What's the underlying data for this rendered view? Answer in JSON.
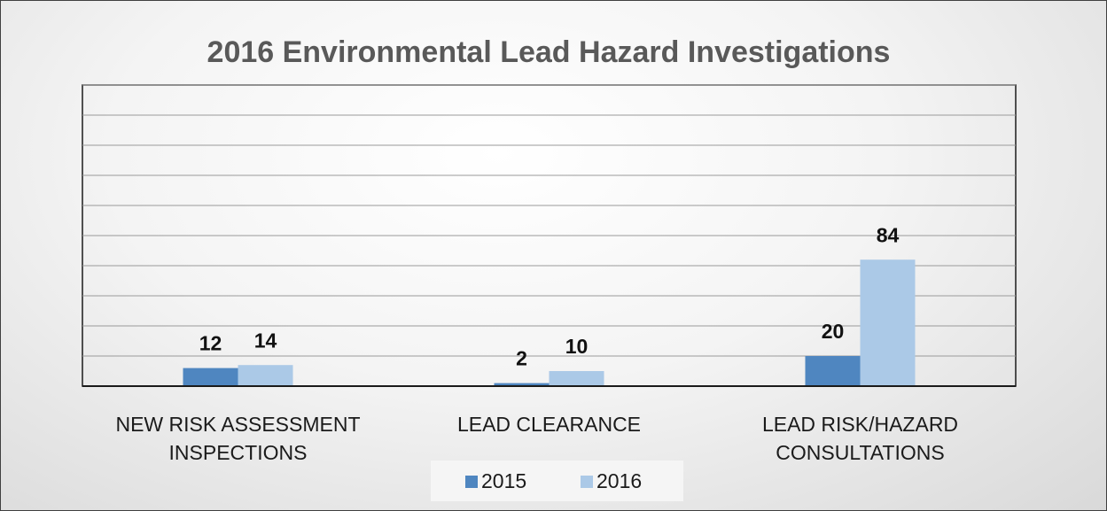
{
  "chart_data": {
    "type": "bar",
    "title": "2016 Environmental Lead Hazard Investigations",
    "categories": [
      "NEW RISK ASSESSMENT INSPECTIONS",
      "LEAD CLEARANCE",
      "LEAD RISK/HAZARD CONSULTATIONS"
    ],
    "series": [
      {
        "name": "2015",
        "color": "#4f86c0",
        "values": [
          12,
          2,
          20
        ]
      },
      {
        "name": "2016",
        "color": "#abc9e7",
        "values": [
          14,
          10,
          84
        ]
      }
    ],
    "ylim": [
      0,
      200
    ],
    "yticks": [
      0,
      20,
      40,
      60,
      80,
      100,
      120,
      140,
      160,
      180,
      200
    ],
    "grid": true,
    "legend": "bottom"
  }
}
